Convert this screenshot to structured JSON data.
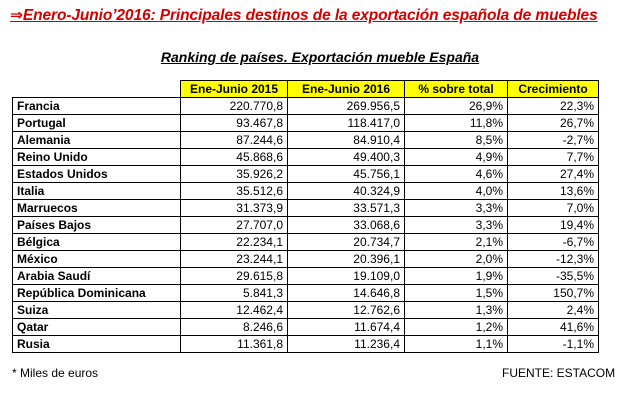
{
  "headline": {
    "arrow": "⇒",
    "text": "Enero-Junio’2016: Principales destinos de la exportación española de muebles"
  },
  "subtitle": "Ranking de países. Exportación mueble España",
  "table": {
    "headers": [
      "",
      "Ene-Junio 2015",
      "Ene-Junio 2016",
      "% sobre total",
      "Crecimiento"
    ],
    "rows": [
      [
        "Francia",
        "220.770,8",
        "269.956,5",
        "26,9%",
        "22,3%"
      ],
      [
        "Portugal",
        "93.467,8",
        "118.417,0",
        "11,8%",
        "26,7%"
      ],
      [
        "Alemania",
        "87.244,6",
        "84.910,4",
        "8,5%",
        "-2,7%"
      ],
      [
        "Reino Unido",
        "45.868,6",
        "49.400,3",
        "4,9%",
        "7,7%"
      ],
      [
        "Estados Unidos",
        "35.926,2",
        "45.756,1",
        "4,6%",
        "27,4%"
      ],
      [
        "Italia",
        "35.512,6",
        "40.324,9",
        "4,0%",
        "13,6%"
      ],
      [
        "Marruecos",
        "31.373,9",
        "33.571,3",
        "3,3%",
        "7,0%"
      ],
      [
        "Países Bajos",
        "27.707,0",
        "33.068,6",
        "3,3%",
        "19,4%"
      ],
      [
        "Bélgica",
        "22.234,1",
        "20.734,7",
        "2,1%",
        "-6,7%"
      ],
      [
        "México",
        "23.244,1",
        "20.396,1",
        "2,0%",
        "-12,3%"
      ],
      [
        "Arabia Saudí",
        "29.615,8",
        "19.109,0",
        "1,9%",
        "-35,5%"
      ],
      [
        "República Dominicana",
        "5.841,3",
        "14.646,8",
        "1,5%",
        "150,7%"
      ],
      [
        "Suiza",
        "12.462,4",
        "12.762,6",
        "1,3%",
        "2,4%"
      ],
      [
        "Qatar",
        "8.246,6",
        "11.674,4",
        "1,2%",
        "41,6%"
      ],
      [
        "Rusia",
        "11.361,8",
        "11.236,4",
        "1,1%",
        "-1,1%"
      ]
    ]
  },
  "footnote": "* Miles de euros",
  "source": "FUENTE:  ESTACOM",
  "colors": {
    "headline": "#d40000",
    "header_fill": "#ffff00"
  }
}
